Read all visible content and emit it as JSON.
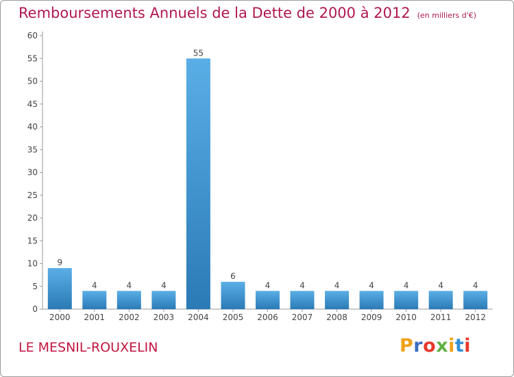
{
  "header": {
    "title": "Remboursements Annuels de la Dette de 2000 à 2012",
    "unit": "(en milliers d'€)"
  },
  "footer": {
    "commune": "LE MESNIL-ROUXELIN",
    "logo_text": "Proxiti"
  },
  "colors": {
    "title": "#b0174f",
    "bar_top": "#5aaee6",
    "bar_bottom": "#2a7ab6",
    "logo_letters": [
      "#f0a21a",
      "#3a6fc1",
      "#e6392b",
      "#62b043",
      "#f0a21a",
      "#2f8fd9",
      "#e6392b"
    ]
  },
  "chart_data": {
    "type": "bar",
    "title": "Remboursements Annuels de la Dette de 2000 à 2012",
    "unit": "(en milliers d'€)",
    "xlabel": "",
    "ylabel": "",
    "categories": [
      "2000",
      "2001",
      "2002",
      "2003",
      "2004",
      "2005",
      "2006",
      "2007",
      "2008",
      "2009",
      "2010",
      "2011",
      "2012"
    ],
    "values": [
      9,
      4,
      4,
      4,
      55,
      6,
      4,
      4,
      4,
      4,
      4,
      4,
      4
    ],
    "ylim": [
      0,
      60
    ],
    "yticks": [
      0,
      5,
      10,
      15,
      20,
      25,
      30,
      35,
      40,
      45,
      50,
      55,
      60
    ],
    "data_labels": true,
    "grid": false
  }
}
